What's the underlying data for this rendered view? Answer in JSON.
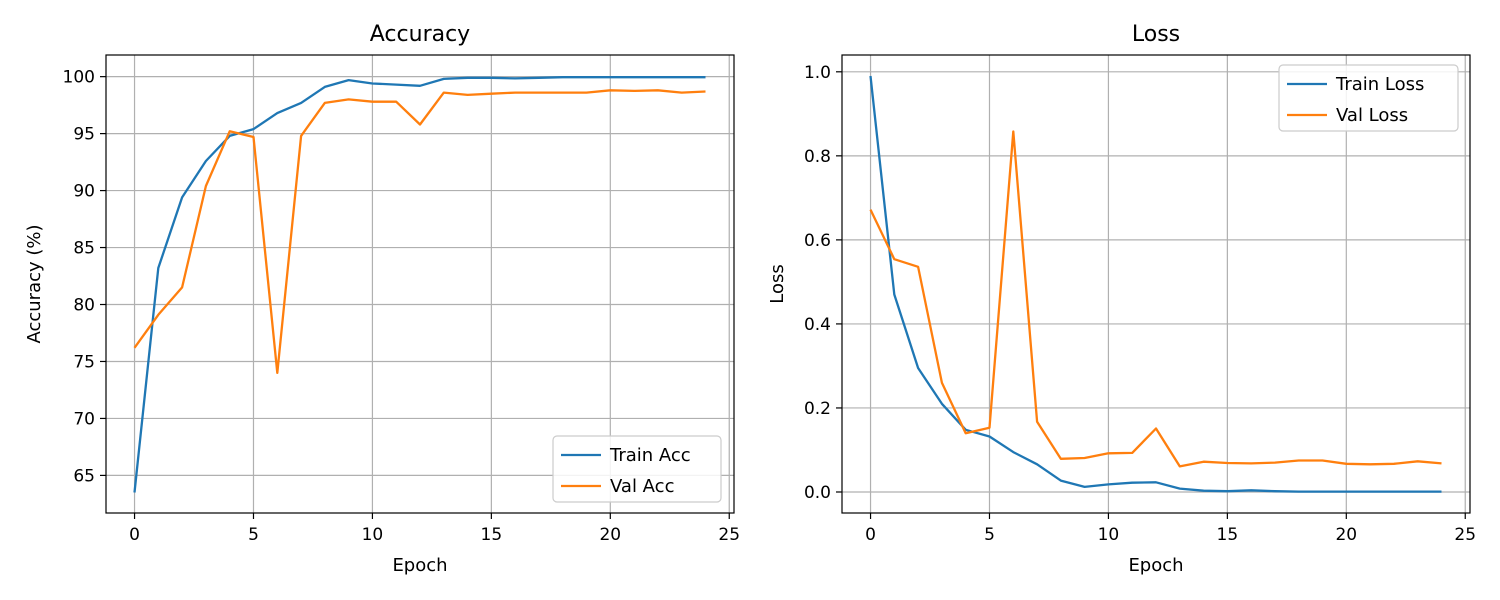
{
  "chart_data": [
    {
      "type": "line",
      "title": "Accuracy",
      "xlabel": "Epoch",
      "ylabel": "Accuracy (%)",
      "xlim": [
        -1.2,
        25.2
      ],
      "ylim": [
        61.7,
        101.9
      ],
      "xticks": [
        0,
        5,
        10,
        15,
        20,
        25
      ],
      "yticks": [
        65,
        70,
        75,
        80,
        85,
        90,
        95,
        100
      ],
      "grid": true,
      "legend": "lower-right",
      "x": [
        0,
        1,
        2,
        3,
        4,
        5,
        6,
        7,
        8,
        9,
        10,
        11,
        12,
        13,
        14,
        15,
        16,
        17,
        18,
        19,
        20,
        21,
        22,
        23,
        24
      ],
      "series": [
        {
          "name": "Train Acc",
          "color": "#1f77b4",
          "values": [
            63.5,
            83.2,
            89.4,
            92.6,
            94.8,
            95.4,
            96.8,
            97.7,
            99.1,
            99.7,
            99.4,
            99.3,
            99.2,
            99.8,
            99.9,
            99.9,
            99.85,
            99.9,
            99.95,
            99.95,
            99.95,
            99.95,
            99.95,
            99.95,
            99.95
          ]
        },
        {
          "name": "Val Acc",
          "color": "#ff7f0e",
          "values": [
            76.2,
            79.1,
            81.5,
            90.4,
            95.2,
            94.7,
            74.0,
            94.8,
            97.7,
            98.0,
            97.8,
            97.8,
            95.8,
            98.6,
            98.4,
            98.5,
            98.6,
            98.6,
            98.6,
            98.6,
            98.8,
            98.75,
            98.8,
            98.6,
            98.7
          ]
        }
      ]
    },
    {
      "type": "line",
      "title": "Loss",
      "xlabel": "Epoch",
      "ylabel": "Loss",
      "xlim": [
        -1.2,
        25.2
      ],
      "ylim": [
        -0.05,
        1.04
      ],
      "xticks": [
        0,
        5,
        10,
        15,
        20,
        25
      ],
      "yticks": [
        0.0,
        0.2,
        0.4,
        0.6,
        0.8,
        1.0
      ],
      "ytick_labels": [
        "0.0",
        "0.2",
        "0.4",
        "0.6",
        "0.8",
        "1.0"
      ],
      "grid": true,
      "legend": "upper-right",
      "x": [
        0,
        1,
        2,
        3,
        4,
        5,
        6,
        7,
        8,
        9,
        10,
        11,
        12,
        13,
        14,
        15,
        16,
        17,
        18,
        19,
        20,
        21,
        22,
        23,
        24
      ],
      "series": [
        {
          "name": "Train Loss",
          "color": "#1f77b4",
          "values": [
            0.99,
            0.47,
            0.295,
            0.21,
            0.148,
            0.132,
            0.095,
            0.066,
            0.027,
            0.012,
            0.018,
            0.022,
            0.023,
            0.008,
            0.003,
            0.002,
            0.004,
            0.002,
            0.001,
            0.001,
            0.001,
            0.001,
            0.001,
            0.001,
            0.001
          ]
        },
        {
          "name": "Val Loss",
          "color": "#ff7f0e",
          "values": [
            0.672,
            0.554,
            0.536,
            0.26,
            0.14,
            0.153,
            0.858,
            0.167,
            0.079,
            0.081,
            0.092,
            0.093,
            0.151,
            0.061,
            0.072,
            0.069,
            0.068,
            0.07,
            0.075,
            0.075,
            0.067,
            0.066,
            0.067,
            0.073,
            0.068
          ]
        }
      ]
    }
  ]
}
